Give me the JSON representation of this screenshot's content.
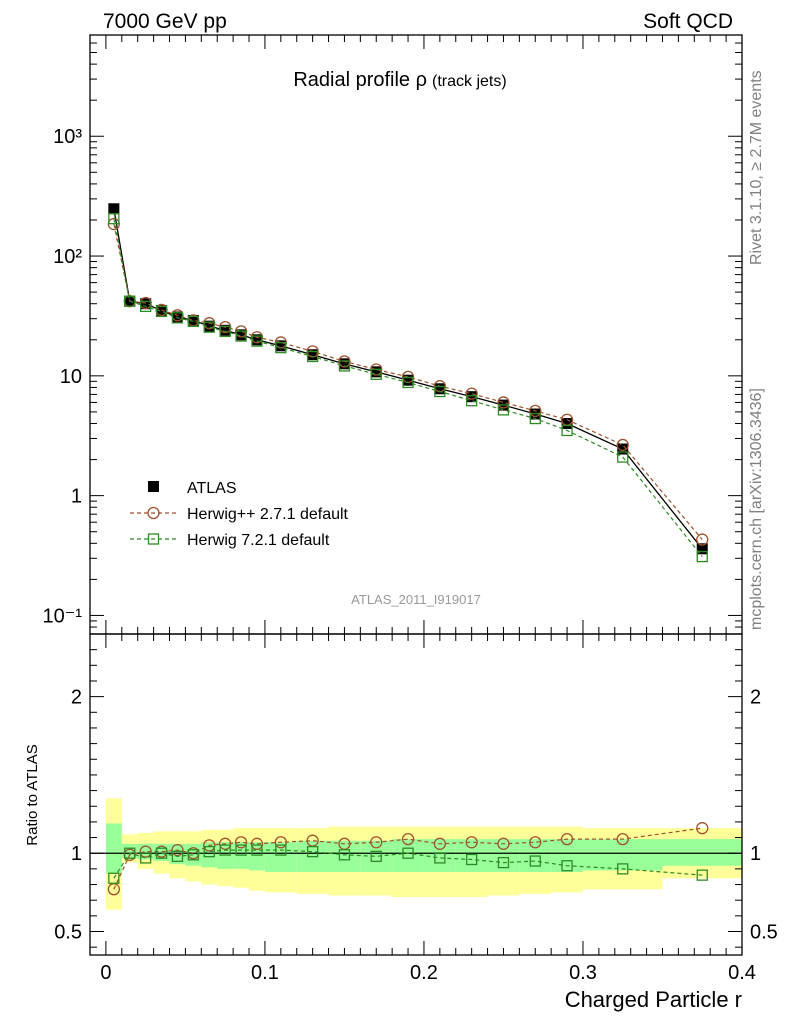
{
  "header": {
    "left": "7000 GeV pp",
    "right": "Soft QCD"
  },
  "side_labels": {
    "rivet": "Rivet 3.1.10, ≥ 2.7M events",
    "mcplots": "mcplots.cern.ch [arXiv:1306.3436]"
  },
  "chart_data": [
    {
      "type": "scatter",
      "panel": "main",
      "title_main": "Radial profile ρ",
      "title_sub": "(track jets)",
      "watermark": "ATLAS_2011_I919017",
      "yscale": "log",
      "ylim": [
        0.07,
        7000
      ],
      "xlim": [
        -0.01,
        0.4
      ],
      "ytick_labels": [
        "10⁻¹",
        "1",
        "10",
        "10²",
        "10³"
      ],
      "ytick_values": [
        0.1,
        1,
        10,
        100,
        1000
      ],
      "legend_position": "lower-left",
      "x": [
        0.005,
        0.015,
        0.025,
        0.035,
        0.045,
        0.055,
        0.065,
        0.075,
        0.085,
        0.095,
        0.11,
        0.13,
        0.15,
        0.17,
        0.19,
        0.21,
        0.23,
        0.25,
        0.27,
        0.29,
        0.325,
        0.375
      ],
      "series": [
        {
          "name": "ATLAS",
          "color": "#000000",
          "marker": "filled-square",
          "values": [
            248,
            42,
            40,
            35,
            31,
            29,
            26,
            24,
            22,
            20,
            17.8,
            15,
            12.6,
            10.8,
            9.2,
            7.8,
            6.7,
            5.7,
            4.8,
            4.0,
            2.45,
            0.36
          ]
        },
        {
          "name": "Herwig++ 2.7.1 default",
          "color": "#a0522d",
          "marker": "open-circle",
          "values": [
            185,
            42,
            40.5,
            35.5,
            32,
            29,
            27.5,
            25.5,
            23.5,
            21,
            19,
            16,
            13.2,
            11.3,
            9.8,
            8.2,
            7.1,
            6.0,
            5.1,
            4.3,
            2.65,
            0.43
          ]
        },
        {
          "name": "Herwig 7.2.1 default",
          "color": "#2e8b22",
          "marker": "open-square",
          "values": [
            205,
            42,
            38,
            34.5,
            30.5,
            28.5,
            25.5,
            23.5,
            21.5,
            19.5,
            17.2,
            14.5,
            12.1,
            10.3,
            8.8,
            7.4,
            6.2,
            5.2,
            4.4,
            3.5,
            2.1,
            0.31
          ]
        }
      ]
    },
    {
      "type": "scatter",
      "panel": "ratio",
      "ylabel": "Ratio to ATLAS",
      "xlabel": "Charged Particle r",
      "ylim": [
        0.35,
        2.4
      ],
      "xlim": [
        -0.01,
        0.4
      ],
      "ytick_labels": [
        "0.5",
        "1",
        "2"
      ],
      "ytick_values": [
        0.5,
        1,
        2
      ],
      "xtick_labels": [
        "0",
        "0.1",
        "0.2",
        "0.3",
        "0.4"
      ],
      "xtick_values": [
        0,
        0.1,
        0.2,
        0.3,
        0.4
      ],
      "bin_edges": [
        0,
        0.01,
        0.02,
        0.03,
        0.04,
        0.05,
        0.06,
        0.07,
        0.08,
        0.09,
        0.1,
        0.12,
        0.14,
        0.16,
        0.18,
        0.2,
        0.22,
        0.24,
        0.26,
        0.28,
        0.3,
        0.35,
        0.4
      ],
      "band_stat_low": [
        0.87,
        0.97,
        0.96,
        0.95,
        0.93,
        0.92,
        0.91,
        0.9,
        0.9,
        0.89,
        0.88,
        0.88,
        0.88,
        0.88,
        0.88,
        0.88,
        0.88,
        0.88,
        0.88,
        0.88,
        0.89,
        0.92
      ],
      "band_stat_high": [
        1.19,
        1.06,
        1.06,
        1.06,
        1.06,
        1.06,
        1.07,
        1.07,
        1.07,
        1.07,
        1.07,
        1.08,
        1.08,
        1.08,
        1.09,
        1.09,
        1.09,
        1.09,
        1.09,
        1.09,
        1.09,
        1.09
      ],
      "band_total_low": [
        0.64,
        0.94,
        0.9,
        0.87,
        0.84,
        0.82,
        0.8,
        0.79,
        0.78,
        0.76,
        0.75,
        0.74,
        0.73,
        0.73,
        0.72,
        0.72,
        0.72,
        0.73,
        0.74,
        0.75,
        0.77,
        0.84
      ],
      "band_total_high": [
        1.35,
        1.12,
        1.13,
        1.14,
        1.14,
        1.14,
        1.15,
        1.15,
        1.16,
        1.16,
        1.16,
        1.16,
        1.17,
        1.17,
        1.17,
        1.17,
        1.17,
        1.17,
        1.17,
        1.17,
        1.16,
        1.16
      ],
      "x": [
        0.005,
        0.015,
        0.025,
        0.035,
        0.045,
        0.055,
        0.065,
        0.075,
        0.085,
        0.095,
        0.11,
        0.13,
        0.15,
        0.17,
        0.19,
        0.21,
        0.23,
        0.25,
        0.27,
        0.29,
        0.325,
        0.375
      ],
      "series": [
        {
          "name": "Herwig++ 2.7.1 default",
          "color": "#a0522d",
          "marker": "open-circle",
          "values": [
            0.77,
            0.99,
            1.01,
            1.01,
            1.02,
            1.0,
            1.05,
            1.06,
            1.07,
            1.06,
            1.07,
            1.08,
            1.06,
            1.07,
            1.09,
            1.06,
            1.07,
            1.06,
            1.07,
            1.09,
            1.09,
            1.16
          ]
        },
        {
          "name": "Herwig 7.2.1 default",
          "color": "#2e8b22",
          "marker": "open-square",
          "values": [
            0.84,
            1.0,
            0.97,
            1.0,
            0.98,
            0.99,
            1.01,
            1.02,
            1.02,
            1.02,
            1.02,
            1.01,
            0.99,
            0.98,
            1.0,
            0.97,
            0.96,
            0.94,
            0.95,
            0.92,
            0.9,
            0.86
          ]
        }
      ]
    }
  ]
}
